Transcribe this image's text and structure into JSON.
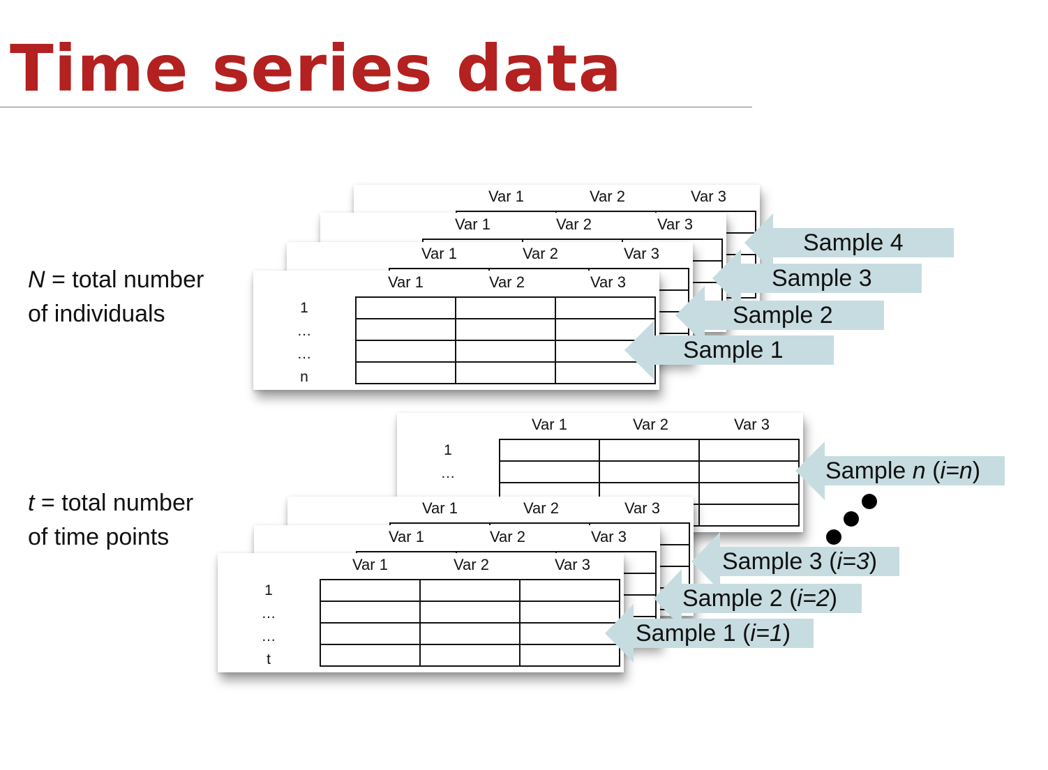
{
  "title": "Time series data",
  "colors": {
    "title": "#b32120",
    "arrow": "#c7dce0",
    "grid_line": "#111111",
    "ellipsis_dots": "#000000"
  },
  "var_headers": [
    "Var 1",
    "Var 2",
    "Var 3"
  ],
  "top_group": {
    "side_label": {
      "symbol": "N",
      "text": " = total number",
      "line2": "of individuals"
    },
    "front_row_labels": [
      "1",
      "…",
      "…",
      "n"
    ],
    "samples": [
      {
        "prefix": "Sample 4",
        "italic": "",
        "suffix": ""
      },
      {
        "prefix": "Sample 3",
        "italic": "",
        "suffix": ""
      },
      {
        "prefix": "Sample 2",
        "italic": "",
        "suffix": ""
      },
      {
        "prefix": "Sample 1",
        "italic": "",
        "suffix": ""
      }
    ]
  },
  "bottom_group": {
    "side_label": {
      "symbol": "t",
      "text": " = total number",
      "line2": "of time points"
    },
    "front_row_labels": [
      "1",
      "…",
      "…",
      "t"
    ],
    "back_row_labels": [
      "1",
      "…"
    ],
    "samples": [
      {
        "prefix": "Sample ",
        "italic": "n",
        "mid": " (",
        "italic2": "i=n",
        "suffix": ")"
      },
      {
        "prefix": "Sample 3 (",
        "italic": "i=3",
        "mid": "",
        "italic2": "",
        "suffix": ")"
      },
      {
        "prefix": "Sample 2 (",
        "italic": "i=2",
        "mid": "",
        "italic2": "",
        "suffix": ")"
      },
      {
        "prefix": "Sample 1 (",
        "italic": "i=1",
        "mid": "",
        "italic2": "",
        "suffix": ")"
      }
    ]
  }
}
